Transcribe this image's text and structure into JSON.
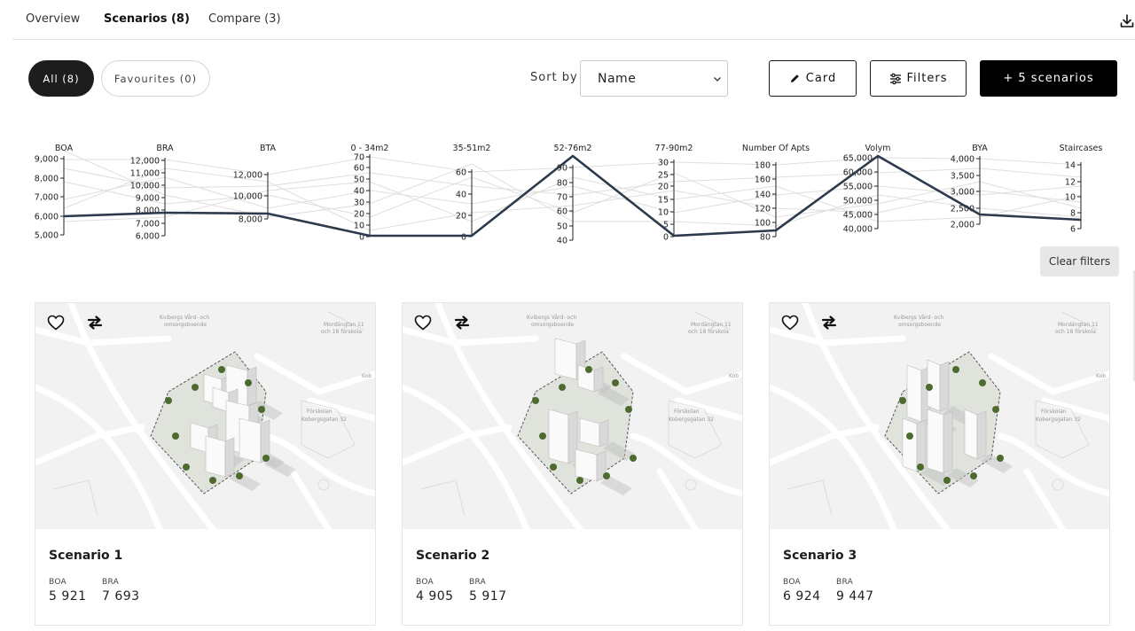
{
  "tabs": [
    {
      "label": "Overview",
      "active": false
    },
    {
      "label": "Scenarios (8)",
      "active": true
    },
    {
      "label": "Compare (3)",
      "active": false
    }
  ],
  "filters": {
    "all_label": "All (8)",
    "favourites_label": "Favourites (0)",
    "sort_label": "Sort by",
    "sort_value": "Name"
  },
  "actions": {
    "card_label": "Card",
    "filters_label": "Filters",
    "add_label": "+ 5 scenarios"
  },
  "clear_filters_label": "Clear filters",
  "chart_data": {
    "type": "parallel_coordinates",
    "axes": [
      {
        "name": "BOA",
        "ticks": [
          "9,000",
          "8,000",
          "7,000",
          "6,000",
          "5,000"
        ]
      },
      {
        "name": "BRA",
        "ticks": [
          "12,000",
          "11,000",
          "10,000",
          "9,000",
          "8,000",
          "7,000",
          "6,000"
        ]
      },
      {
        "name": "BTA",
        "ticks": [
          "12,000",
          "10,000",
          "8,000"
        ]
      },
      {
        "name": "0 - 34m2",
        "ticks": [
          "70",
          "60",
          "50",
          "40",
          "30",
          "20",
          "10",
          "0"
        ]
      },
      {
        "name": "35-51m2",
        "ticks": [
          "60",
          "40",
          "20",
          "0"
        ]
      },
      {
        "name": "52-76m2",
        "ticks": [
          "90",
          "80",
          "70",
          "60",
          "50",
          "40"
        ]
      },
      {
        "name": "77-90m2",
        "ticks": [
          "30",
          "25",
          "20",
          "15",
          "10",
          "5",
          "0"
        ]
      },
      {
        "name": "Number Of Apts",
        "ticks": [
          "180",
          "160",
          "140",
          "120",
          "100",
          "80"
        ]
      },
      {
        "name": "Volym",
        "ticks": [
          "65,000",
          "60,000",
          "55,000",
          "50,000",
          "45,000",
          "40,000"
        ]
      },
      {
        "name": "BYA",
        "ticks": [
          "4,000",
          "3,500",
          "3,000",
          "2,500",
          "2,000"
        ]
      },
      {
        "name": "Staircases",
        "ticks": [
          "14",
          "12",
          "10",
          "8",
          "6"
        ]
      }
    ],
    "highlighted": [
      5921,
      7693,
      8000,
      0,
      0,
      92,
      0,
      85,
      65000,
      2450,
      7
    ],
    "background_count": 7
  },
  "cards": [
    {
      "title": "Scenario 1",
      "boa_label": "BOA",
      "boa": "5 921",
      "bra_label": "BRA",
      "bra": "7 693"
    },
    {
      "title": "Scenario 2",
      "boa_label": "BOA",
      "boa": "4 905",
      "bra_label": "BRA",
      "bra": "5 917"
    },
    {
      "title": "Scenario 3",
      "boa_label": "BOA",
      "boa": "6 924",
      "bra_label": "BRA",
      "bra": "9 447"
    }
  ],
  "map_labels": {
    "care_home": "Kvibergs Vård- och omsorgsboende",
    "school_1": "Mordängtan 11 och 18 förskola",
    "preschool": "Förskolan Kobergsgatan 32",
    "street_1": "Kobergsgatan",
    "street_2": "Kviberg",
    "street_3": "Jonsgatan",
    "street_4": "Kob"
  },
  "icons": {
    "download": "download-icon",
    "heart": "heart-icon",
    "compare": "swap-arrows-icon",
    "pencil": "pencil-icon",
    "sliders": "sliders-icon",
    "chevron": "chevron-down-icon"
  }
}
